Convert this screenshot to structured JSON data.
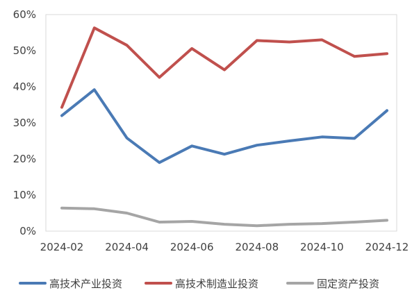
{
  "chart_data": {
    "type": "line",
    "x": [
      "2024-02",
      "2024-03",
      "2024-04",
      "2024-05",
      "2024-06",
      "2024-07",
      "2024-08",
      "2024-09",
      "2024-10",
      "2024-11",
      "2024-12"
    ],
    "x_tick_labels": [
      "2024-02",
      "2024-04",
      "2024-06",
      "2024-08",
      "2024-10",
      "2024-12"
    ],
    "y_tick_labels": [
      "0%",
      "10%",
      "20%",
      "30%",
      "40%",
      "50%",
      "60%"
    ],
    "ylim": [
      0,
      60
    ],
    "y_unit": "%",
    "grid": false,
    "legend_position": "bottom",
    "series": [
      {
        "name": "高技术产业投资",
        "color": "#4a7ab5",
        "values": [
          32.0,
          39.2,
          25.8,
          19.0,
          23.6,
          21.3,
          23.8,
          25.0,
          26.1,
          25.7,
          33.4
        ]
      },
      {
        "name": "高技术制造业投资",
        "color": "#c0504d",
        "values": [
          34.3,
          56.3,
          51.5,
          42.6,
          50.6,
          44.7,
          52.8,
          52.4,
          53.0,
          48.4,
          49.2
        ]
      },
      {
        "name": "固定资产投资",
        "color": "#a5a5a5",
        "values": [
          6.4,
          6.2,
          5.0,
          2.5,
          2.7,
          1.9,
          1.5,
          1.9,
          2.1,
          2.5,
          3.0
        ]
      }
    ]
  }
}
